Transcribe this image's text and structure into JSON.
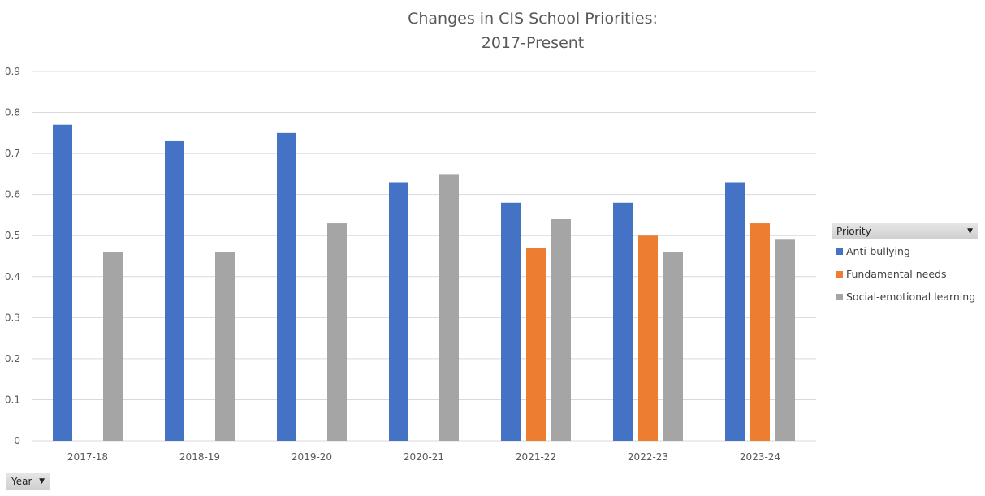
{
  "chart_data": {
    "type": "bar",
    "title": [
      "Changes in CIS School Priorities:",
      "2017-Present"
    ],
    "categories": [
      "2017-18",
      "2018-19",
      "2019-20",
      "2020-21",
      "2021-22",
      "2022-23",
      "2023-24"
    ],
    "series": [
      {
        "name": "Anti-bullying",
        "color": "#4472c4",
        "values": [
          0.77,
          0.73,
          0.75,
          0.63,
          0.58,
          0.58,
          0.63
        ]
      },
      {
        "name": "Fundamental needs",
        "color": "#ed7d31",
        "values": [
          null,
          null,
          null,
          null,
          0.47,
          0.5,
          0.53
        ]
      },
      {
        "name": "Social-emotional learning",
        "color": "#a5a5a5",
        "values": [
          0.46,
          0.46,
          0.53,
          0.65,
          0.54,
          0.46,
          0.49
        ]
      }
    ],
    "ylim": [
      0,
      0.9
    ],
    "yticks": [
      "0",
      "0.1",
      "0.2",
      "0.3",
      "0.4",
      "0.5",
      "0.6",
      "0.7",
      "0.8",
      "0.9"
    ],
    "grid": true,
    "legend_placement": "right"
  },
  "legend": {
    "field_label": "Priority"
  },
  "axis_field": {
    "label": "Year"
  },
  "icons": {
    "dropdown": "triangle-down-icon"
  }
}
